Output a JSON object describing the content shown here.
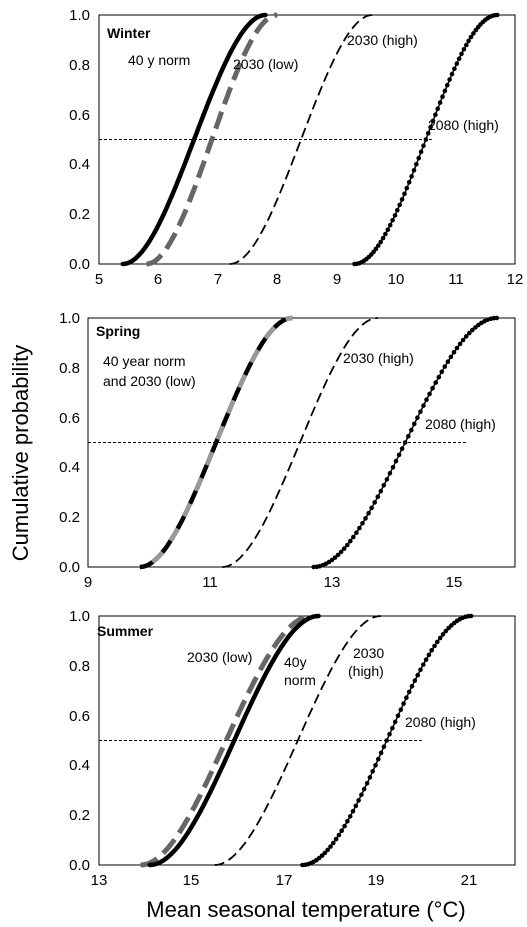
{
  "ylabel": "Cumulative probability",
  "xlabel": "Mean seasonal temperature (°C)",
  "chart_data": [
    {
      "type": "line",
      "title": "Winter",
      "xlim": [
        5,
        12
      ],
      "ylim": [
        0,
        1
      ],
      "x_ticks": [
        "5",
        "6",
        "7",
        "8",
        "9",
        "10",
        "11",
        "12"
      ],
      "y_ticks": [
        "0.0",
        "0.2",
        "0.4",
        "0.6",
        "0.8",
        "1.0"
      ],
      "reference_y": 0.5,
      "series": [
        {
          "name": "40 y norm",
          "style": "solid",
          "color": "#000000",
          "x_start": 5.4,
          "x_end": 7.8
        },
        {
          "name": "2030 (low)",
          "style": "dash-gray",
          "color": "#666666",
          "x_start": 5.8,
          "x_end": 8.0
        },
        {
          "name": "2030 (high)",
          "style": "dash",
          "color": "#000000",
          "x_start": 7.2,
          "x_end": 9.6
        },
        {
          "name": "2080 (high)",
          "style": "dotted",
          "color": "#000000",
          "x_start": 9.3,
          "x_end": 11.7
        }
      ],
      "annotations": [
        "40 y norm",
        "2030 (low)",
        "2030 (high)",
        "2080 (high)"
      ]
    },
    {
      "type": "line",
      "title": "Spring",
      "xlim": [
        9,
        16
      ],
      "ylim": [
        0,
        1
      ],
      "x_ticks": [
        "9",
        "11",
        "13",
        "15"
      ],
      "y_ticks": [
        "0.0",
        "0.2",
        "0.4",
        "0.6",
        "0.8",
        "1.0"
      ],
      "reference_y": 0.5,
      "series": [
        {
          "name": "40 year norm and 2030 (low)",
          "style": "alt-black-gray",
          "color": "#000000",
          "x_start": 9.85,
          "x_end": 12.35
        },
        {
          "name": "2030 (high)",
          "style": "dash",
          "color": "#000000",
          "x_start": 11.2,
          "x_end": 13.75
        },
        {
          "name": "2080 (high)",
          "style": "dotted",
          "color": "#000000",
          "x_start": 12.7,
          "x_end": 15.7
        }
      ],
      "annotations": [
        "40 year norm",
        "and 2030 (low)",
        "2030 (high)",
        "2080 (high)"
      ]
    },
    {
      "type": "line",
      "title": "Summer",
      "xlim": [
        13,
        22
      ],
      "ylim": [
        0,
        1
      ],
      "x_ticks": [
        "13",
        "15",
        "17",
        "19",
        "21"
      ],
      "y_ticks": [
        "0.0",
        "0.2",
        "0.4",
        "0.6",
        "0.8",
        "1.0"
      ],
      "reference_y": 0.5,
      "series": [
        {
          "name": "2030 (low)",
          "style": "dash-gray",
          "color": "#666666",
          "x_start": 13.9,
          "x_end": 17.6
        },
        {
          "name": "40y norm",
          "style": "solid",
          "color": "#000000",
          "x_start": 14.1,
          "x_end": 17.75
        },
        {
          "name": "2030 (high)",
          "style": "dash",
          "color": "#000000",
          "x_start": 15.5,
          "x_end": 19.1
        },
        {
          "name": "2080 (high)",
          "style": "dotted",
          "color": "#000000",
          "x_start": 17.4,
          "x_end": 21.05
        }
      ],
      "annotations": [
        "2030 (low)",
        "40y",
        "norm",
        "2030",
        "(high)",
        "2080 (high)"
      ]
    }
  ]
}
